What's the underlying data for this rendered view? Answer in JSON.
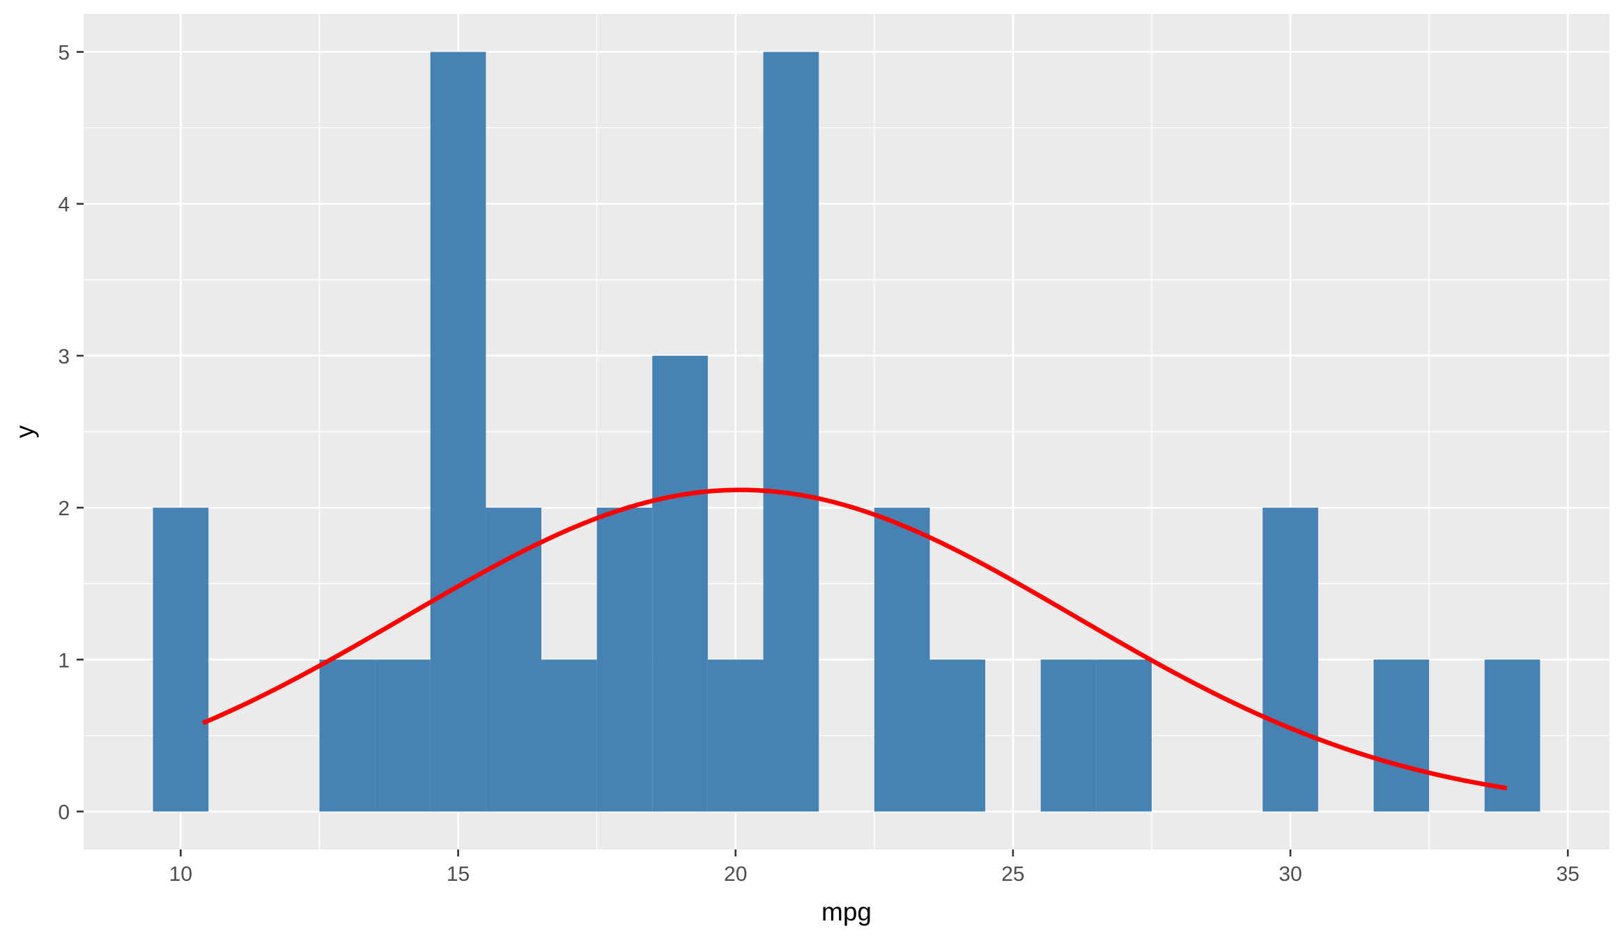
{
  "chart_data": {
    "type": "bar",
    "subtype": "histogram",
    "title": "",
    "xlabel": "mpg",
    "ylabel": "y",
    "xlim": [
      8.25,
      35.75
    ],
    "ylim": [
      -0.25,
      5.25
    ],
    "x_ticks": [
      10,
      15,
      20,
      25,
      30,
      35
    ],
    "y_ticks": [
      0,
      1,
      2,
      3,
      4,
      5
    ],
    "grid": true,
    "legend": "none",
    "bin_width": 1,
    "bins": [
      {
        "x": 10,
        "count": 2
      },
      {
        "x": 11,
        "count": 0
      },
      {
        "x": 12,
        "count": 0
      },
      {
        "x": 13,
        "count": 1
      },
      {
        "x": 14,
        "count": 1
      },
      {
        "x": 15,
        "count": 5
      },
      {
        "x": 16,
        "count": 2
      },
      {
        "x": 17,
        "count": 1
      },
      {
        "x": 18,
        "count": 2
      },
      {
        "x": 19,
        "count": 3
      },
      {
        "x": 20,
        "count": 1
      },
      {
        "x": 21,
        "count": 5
      },
      {
        "x": 22,
        "count": 0
      },
      {
        "x": 23,
        "count": 2
      },
      {
        "x": 24,
        "count": 1
      },
      {
        "x": 25,
        "count": 0
      },
      {
        "x": 26,
        "count": 1
      },
      {
        "x": 27,
        "count": 1
      },
      {
        "x": 28,
        "count": 0
      },
      {
        "x": 29,
        "count": 0
      },
      {
        "x": 30,
        "count": 2
      },
      {
        "x": 31,
        "count": 0
      },
      {
        "x": 32,
        "count": 1
      },
      {
        "x": 33,
        "count": 0
      },
      {
        "x": 34,
        "count": 1
      }
    ],
    "curve": {
      "type": "normal",
      "mean": 20.09,
      "sd": 6.03,
      "scale": 32,
      "x_range": [
        10.4,
        33.9
      ]
    },
    "colors": {
      "bars": "#4682b4",
      "curve": "#ff0000",
      "panel": "#ebebeb",
      "grid": "#ffffff"
    }
  }
}
